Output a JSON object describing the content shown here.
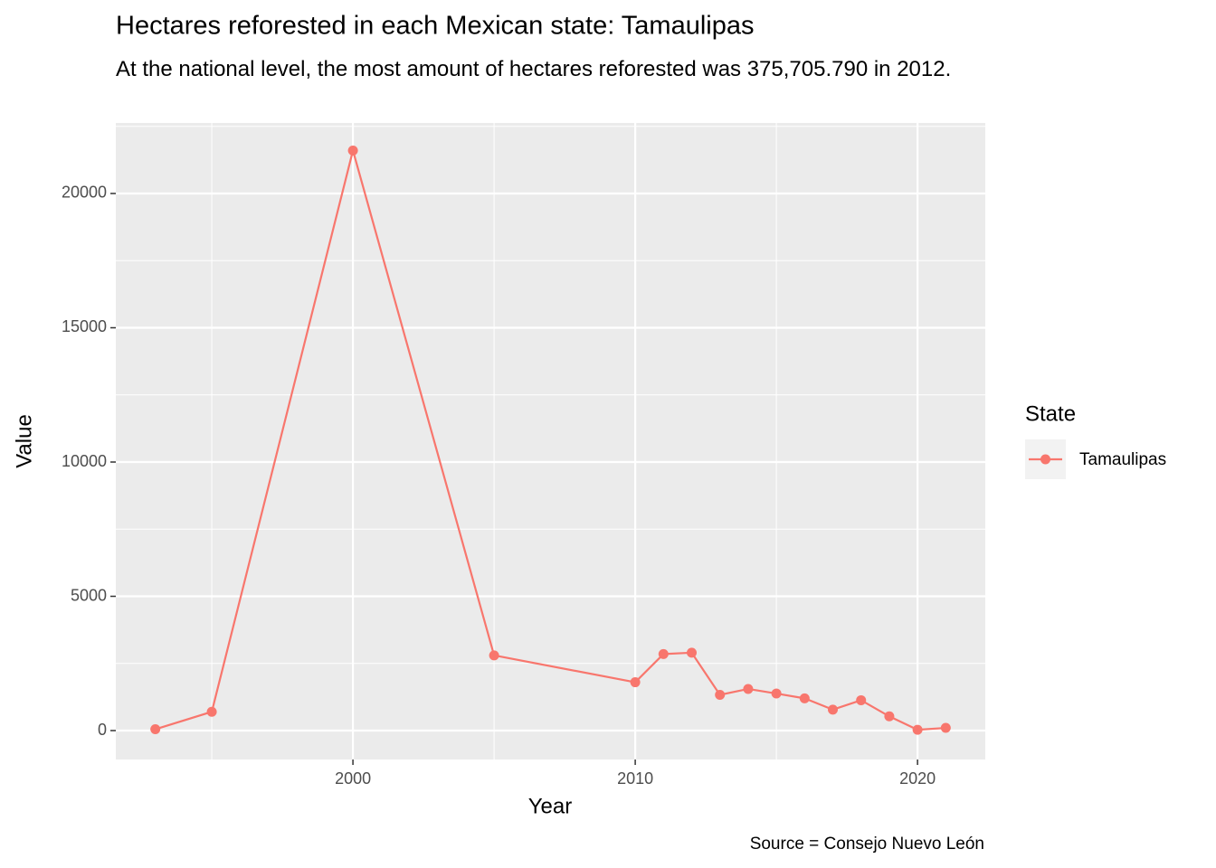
{
  "chart_data": {
    "type": "line",
    "title": "Hectares reforested in each Mexican state: Tamaulipas",
    "subtitle": "At the national level, the most amount of hectares reforested was 375,705.790 in 2012.",
    "caption": "Source = Consejo Nuevo León",
    "x_label": "Year",
    "y_label": "Value",
    "legend_title": "State",
    "legend_position": "right",
    "x": [
      1993,
      1995,
      2000,
      2005,
      2010,
      2011,
      2012,
      2013,
      2014,
      2015,
      2016,
      2017,
      2018,
      2019,
      2020,
      2021
    ],
    "series": [
      {
        "name": "Tamaulipas",
        "color": "#F8766D",
        "values": [
          50,
          700,
          21600,
          2800,
          1800,
          2850,
          2900,
          1330,
          1550,
          1380,
          1200,
          780,
          1130,
          530,
          30,
          100
        ]
      }
    ],
    "xlim": [
      1991.6,
      2022.4
    ],
    "xticks": [
      2000,
      2010,
      2020
    ],
    "ylim": [
      -1077,
      22626
    ],
    "yticks": [
      0,
      5000,
      10000,
      15000,
      20000
    ],
    "grid": true
  }
}
